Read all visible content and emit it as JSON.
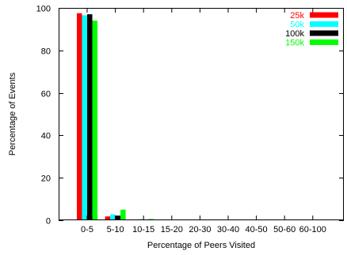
{
  "chart_data": {
    "type": "bar",
    "xlabel": "Percentage of Peers Visited",
    "ylabel": "Percentage of Events",
    "ylim": [
      0,
      100
    ],
    "yticks": [
      0,
      20,
      40,
      60,
      80,
      100
    ],
    "categories": [
      "0-5",
      "5-10",
      "10-15",
      "15-20",
      "20-30",
      "30-40",
      "40-50",
      "50-60",
      "60-100"
    ],
    "legend_position": "top-right",
    "grid": false,
    "series": [
      {
        "name": "25k",
        "color": "#ff0000",
        "values": [
          97.5,
          1.8,
          0.4,
          0.2,
          0.1,
          0.05,
          0.03,
          0.02,
          0.02
        ]
      },
      {
        "name": "50k",
        "color": "#00ffff",
        "values": [
          96.5,
          2.8,
          0.5,
          0.2,
          0.1,
          0.05,
          0.03,
          0.02,
          0.02
        ]
      },
      {
        "name": "100k",
        "color": "#000000",
        "values": [
          97.0,
          2.2,
          0.4,
          0.2,
          0.1,
          0.05,
          0.03,
          0.02,
          0.02
        ]
      },
      {
        "name": "150k",
        "color": "#00ff00",
        "values": [
          94.0,
          5.0,
          0.6,
          0.3,
          0.1,
          0.05,
          0.03,
          0.02,
          0.02
        ]
      }
    ]
  }
}
